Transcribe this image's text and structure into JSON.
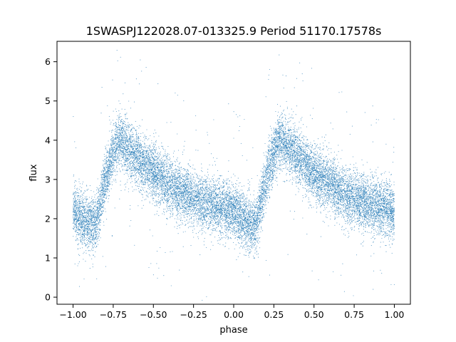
{
  "chart_data": {
    "type": "scatter",
    "title": "1SWASPJ122028.07-013325.9 Period 51170.17578s",
    "xlabel": "phase",
    "ylabel": "flux",
    "xlim": [
      -1.1,
      1.1
    ],
    "ylim": [
      -0.18,
      6.52
    ],
    "xticks": [
      -1.0,
      -0.75,
      -0.5,
      -0.25,
      0.0,
      0.25,
      0.5,
      0.75,
      1.0
    ],
    "xtick_labels": [
      "−1.00",
      "−0.75",
      "−0.50",
      "−0.25",
      "0.00",
      "0.25",
      "0.50",
      "0.75",
      "1.00"
    ],
    "yticks": [
      0,
      1,
      2,
      3,
      4,
      5,
      6
    ],
    "ytick_labels": [
      "0",
      "1",
      "2",
      "3",
      "4",
      "5",
      "6"
    ],
    "grid": false,
    "marker_color": "#1f77b4",
    "series": [
      {
        "phase_range": [
          -1.0,
          1.0
        ],
        "profile": {
          "phase": [
            0.0,
            0.05,
            0.1,
            0.14,
            0.2,
            0.27,
            0.3,
            0.35,
            0.45,
            0.55,
            0.7,
            0.85,
            1.0
          ],
          "flux": [
            2.15,
            2.0,
            1.85,
            1.85,
            3.0,
            3.9,
            4.0,
            3.75,
            3.35,
            3.0,
            2.6,
            2.35,
            2.2
          ]
        },
        "scatter_sigma": 0.35
      }
    ]
  }
}
